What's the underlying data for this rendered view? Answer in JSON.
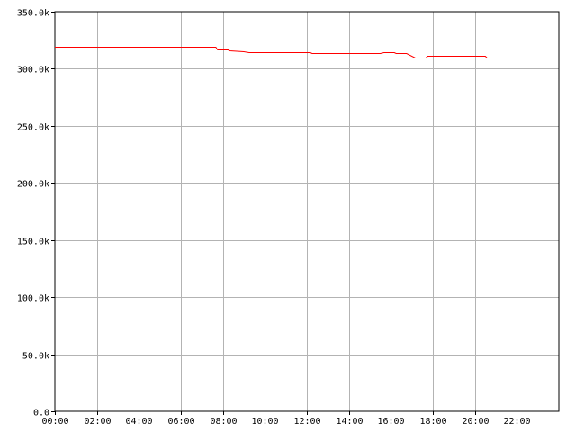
{
  "chart_data": {
    "type": "line",
    "title": "",
    "xlabel": "",
    "ylabel": "",
    "x_range": [
      "00:00",
      "24:00"
    ],
    "ylim": [
      0,
      350000
    ],
    "x_ticks": [
      "00:00",
      "02:00",
      "04:00",
      "06:00",
      "08:00",
      "10:00",
      "12:00",
      "14:00",
      "16:00",
      "18:00",
      "20:00",
      "22:00"
    ],
    "y_ticks": [
      {
        "value": 0,
        "label": "0.0"
      },
      {
        "value": 50000,
        "label": "50.0k"
      },
      {
        "value": 100000,
        "label": "100.0k"
      },
      {
        "value": 150000,
        "label": "150.0k"
      },
      {
        "value": 200000,
        "label": "200.0k"
      },
      {
        "value": 250000,
        "label": "250.0k"
      },
      {
        "value": 300000,
        "label": "300.0k"
      },
      {
        "value": 350000,
        "label": "350.0k"
      }
    ],
    "grid": true,
    "legend": "none",
    "series": [
      {
        "color": "#ff0000",
        "points": [
          [
            "00:00",
            319500
          ],
          [
            "07:40",
            319500
          ],
          [
            "07:45",
            317000
          ],
          [
            "08:15",
            317000
          ],
          [
            "08:20",
            316000
          ],
          [
            "09:00",
            315500
          ],
          [
            "09:15",
            314500
          ],
          [
            "12:10",
            314500
          ],
          [
            "12:15",
            314000
          ],
          [
            "15:30",
            314000
          ],
          [
            "15:40",
            314500
          ],
          [
            "16:10",
            314500
          ],
          [
            "16:15",
            314000
          ],
          [
            "16:45",
            314000
          ],
          [
            "17:10",
            310000
          ],
          [
            "17:40",
            310000
          ],
          [
            "17:45",
            311000
          ],
          [
            "18:15",
            311000
          ],
          [
            "18:20",
            311500
          ],
          [
            "20:30",
            311500
          ],
          [
            "20:35",
            310000
          ],
          [
            "23:59",
            310000
          ]
        ]
      }
    ]
  }
}
